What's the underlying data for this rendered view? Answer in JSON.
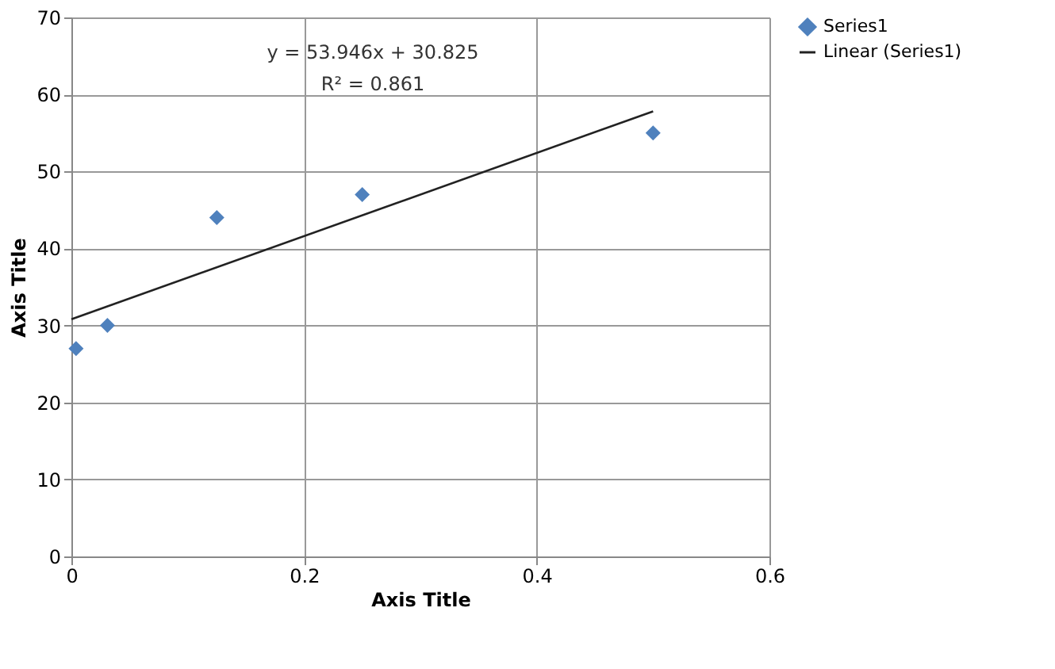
{
  "chart_data": {
    "type": "scatter",
    "xlabel": "Axis Title",
    "ylabel": "Axis Title",
    "xlim": [
      0,
      0.6
    ],
    "xticks": [
      0,
      0.2,
      0.4,
      0.6
    ],
    "ylim": [
      0,
      70
    ],
    "yticks": [
      0,
      10,
      20,
      30,
      40,
      50,
      60,
      70
    ],
    "grid": true,
    "legend": "right",
    "annotations": [
      "y = 53.946x + 30.825",
      "R² = 0.861"
    ],
    "series": [
      {
        "name": "Series1",
        "color": "#4f81bd",
        "marker": "diamond",
        "x": [
          0.004,
          0.031,
          0.125,
          0.25,
          0.5
        ],
        "values": [
          27,
          30,
          44,
          47,
          55
        ]
      },
      {
        "name": "Linear (Series1)",
        "type": "line",
        "color": "#222222",
        "x": [
          0,
          0.5
        ],
        "values": [
          30.8,
          57.8
        ],
        "line_style": "solid"
      }
    ]
  }
}
